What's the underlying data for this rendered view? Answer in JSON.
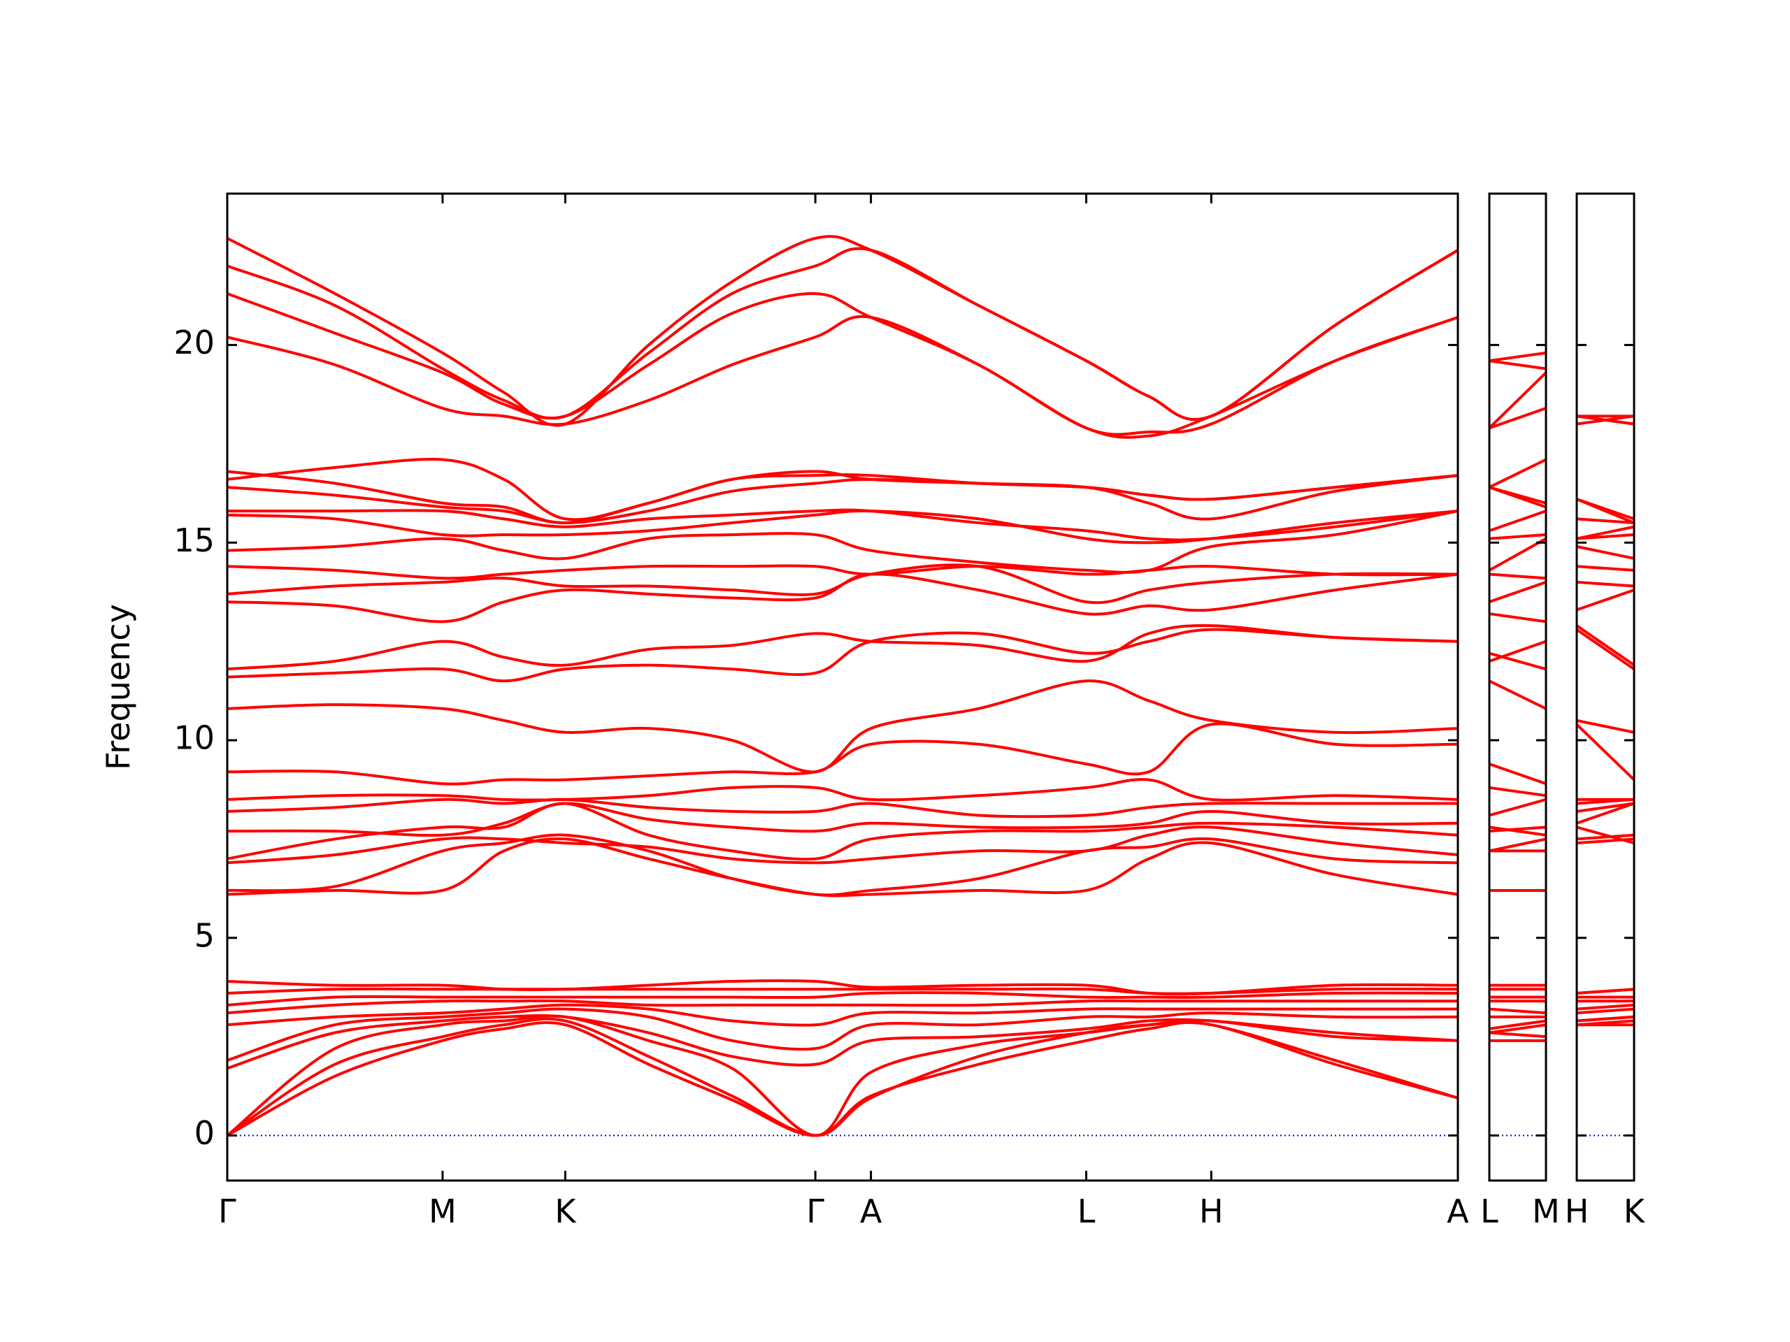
{
  "chart_data": [
    {
      "type": "line",
      "ylabel": "Frequency",
      "color": "#ff0000",
      "hline": 0,
      "hline_color": "#0000ff",
      "ytick_labels": true,
      "xlim": [
        0,
        10.63
      ],
      "ylim": [
        -1.14,
        23.83
      ],
      "yticks": [
        0,
        5,
        10,
        15,
        20
      ],
      "xticks": [
        {
          "value": 0,
          "label": "Γ"
        },
        {
          "value": 1.86,
          "label": "M"
        },
        {
          "value": 2.92,
          "label": "K"
        },
        {
          "value": 5.08,
          "label": "Γ"
        },
        {
          "value": 5.56,
          "label": "A"
        },
        {
          "value": 7.42,
          "label": "L"
        },
        {
          "value": 8.5,
          "label": "H"
        },
        {
          "value": 10.63,
          "label": "A"
        }
      ],
      "x": [
        0,
        0.93,
        1.86,
        2.39,
        2.92,
        3.64,
        4.36,
        5.08,
        5.56,
        6.49,
        7.42,
        7.96,
        8.5,
        9.57,
        10.63
      ],
      "series": [
        {
          "values": [
            0,
            1.5,
            2.4,
            2.7,
            2.8,
            1.8,
            0.9,
            0,
            1.0,
            1.8,
            2.4,
            2.7,
            2.8,
            1.8,
            0.95
          ]
        },
        {
          "values": [
            0,
            1.8,
            2.5,
            2.8,
            2.9,
            2.0,
            1.0,
            0,
            0.95,
            2.0,
            2.6,
            2.8,
            2.8,
            1.9,
            0.95
          ]
        },
        {
          "values": [
            0,
            2.2,
            2.8,
            2.9,
            3.0,
            2.4,
            1.7,
            0,
            1.6,
            2.3,
            2.6,
            2.8,
            2.9,
            2.5,
            2.4
          ]
        },
        {
          "values": [
            1.7,
            2.6,
            2.9,
            3.0,
            3.0,
            2.6,
            2.0,
            1.8,
            2.4,
            2.5,
            2.7,
            2.9,
            2.9,
            2.6,
            2.4
          ]
        },
        {
          "values": [
            1.9,
            2.8,
            3.0,
            3.1,
            3.2,
            3.0,
            2.4,
            2.2,
            2.8,
            2.8,
            3.0,
            3.0,
            3.1,
            3.0,
            3.0
          ]
        },
        {
          "values": [
            2.8,
            3.0,
            3.1,
            3.2,
            3.3,
            3.2,
            2.9,
            2.8,
            3.1,
            3.1,
            3.2,
            3.2,
            3.2,
            3.2,
            3.2
          ]
        },
        {
          "values": [
            3.1,
            3.3,
            3.4,
            3.4,
            3.4,
            3.3,
            3.3,
            3.3,
            3.3,
            3.3,
            3.4,
            3.4,
            3.4,
            3.4,
            3.4
          ]
        },
        {
          "values": [
            3.3,
            3.5,
            3.5,
            3.5,
            3.5,
            3.5,
            3.5,
            3.5,
            3.6,
            3.6,
            3.5,
            3.5,
            3.5,
            3.6,
            3.6
          ]
        },
        {
          "values": [
            3.6,
            3.7,
            3.7,
            3.7,
            3.7,
            3.7,
            3.7,
            3.7,
            3.7,
            3.7,
            3.7,
            3.6,
            3.6,
            3.7,
            3.7
          ]
        },
        {
          "values": [
            3.9,
            3.8,
            3.8,
            3.7,
            3.7,
            3.8,
            3.9,
            3.9,
            3.75,
            3.8,
            3.8,
            3.6,
            3.6,
            3.8,
            3.8
          ]
        },
        {
          "values": [
            6.1,
            6.2,
            6.2,
            7.2,
            7.5,
            7.0,
            6.5,
            6.1,
            6.1,
            6.2,
            6.2,
            7.0,
            7.4,
            6.6,
            6.1
          ]
        },
        {
          "values": [
            6.2,
            6.3,
            7.2,
            7.4,
            7.6,
            7.2,
            6.5,
            6.1,
            6.2,
            6.5,
            7.2,
            7.3,
            7.5,
            7.0,
            6.9
          ]
        },
        {
          "values": [
            6.9,
            7.1,
            7.5,
            7.5,
            7.4,
            7.3,
            7.0,
            6.9,
            7.0,
            7.2,
            7.2,
            7.6,
            7.8,
            7.4,
            7.1
          ]
        },
        {
          "values": [
            7.0,
            7.5,
            7.8,
            7.8,
            8.4,
            7.6,
            7.2,
            7.0,
            7.5,
            7.7,
            7.7,
            7.8,
            7.9,
            7.8,
            7.6
          ]
        },
        {
          "values": [
            7.7,
            7.7,
            7.6,
            7.9,
            8.4,
            8.0,
            7.8,
            7.7,
            7.9,
            7.8,
            7.8,
            7.9,
            8.2,
            7.9,
            7.9
          ]
        },
        {
          "values": [
            8.2,
            8.3,
            8.5,
            8.4,
            8.5,
            8.3,
            8.2,
            8.2,
            8.4,
            8.1,
            8.1,
            8.3,
            8.4,
            8.4,
            8.4
          ]
        },
        {
          "values": [
            8.5,
            8.6,
            8.6,
            8.5,
            8.5,
            8.6,
            8.8,
            8.8,
            8.5,
            8.6,
            8.8,
            9.0,
            8.5,
            8.6,
            8.5
          ]
        },
        {
          "values": [
            9.2,
            9.2,
            8.9,
            9.0,
            9.0,
            9.1,
            9.2,
            9.2,
            9.9,
            9.9,
            9.4,
            9.2,
            10.4,
            9.9,
            9.9
          ]
        },
        {
          "values": [
            10.8,
            10.9,
            10.8,
            10.5,
            10.2,
            10.3,
            10.0,
            9.2,
            10.3,
            10.8,
            11.5,
            11.0,
            10.5,
            10.2,
            10.3
          ]
        },
        {
          "values": [
            11.6,
            11.7,
            11.8,
            11.5,
            11.8,
            11.9,
            11.8,
            11.7,
            12.5,
            12.7,
            12.2,
            12.5,
            12.8,
            12.6,
            12.5
          ]
        },
        {
          "values": [
            11.8,
            12.0,
            12.5,
            12.1,
            11.9,
            12.3,
            12.4,
            12.7,
            12.5,
            12.4,
            12.0,
            12.7,
            12.9,
            12.6,
            12.5
          ]
        },
        {
          "values": [
            13.5,
            13.4,
            13.0,
            13.5,
            13.8,
            13.7,
            13.6,
            13.6,
            14.2,
            13.8,
            13.2,
            13.4,
            13.3,
            13.8,
            14.2
          ]
        },
        {
          "values": [
            13.7,
            13.9,
            14.0,
            14.1,
            13.9,
            13.9,
            13.8,
            13.7,
            14.2,
            14.4,
            13.5,
            13.8,
            14.0,
            14.2,
            14.2
          ]
        },
        {
          "values": [
            14.4,
            14.3,
            14.1,
            14.2,
            14.3,
            14.4,
            14.4,
            14.4,
            14.2,
            14.4,
            14.2,
            14.3,
            14.4,
            14.2,
            14.2
          ]
        },
        {
          "values": [
            14.8,
            14.9,
            15.1,
            14.8,
            14.6,
            15.1,
            15.2,
            15.2,
            14.8,
            14.5,
            14.3,
            14.3,
            14.9,
            15.2,
            15.8
          ]
        },
        {
          "values": [
            15.7,
            15.6,
            15.2,
            15.2,
            15.2,
            15.3,
            15.5,
            15.7,
            15.8,
            15.6,
            15.1,
            15.0,
            15.1,
            15.5,
            15.8
          ]
        },
        {
          "values": [
            15.8,
            15.8,
            15.8,
            15.6,
            15.4,
            15.6,
            15.7,
            15.8,
            15.8,
            15.5,
            15.3,
            15.1,
            15.1,
            15.4,
            15.8
          ]
        },
        {
          "values": [
            16.4,
            16.2,
            15.9,
            15.8,
            15.5,
            15.8,
            16.3,
            16.5,
            16.6,
            16.5,
            16.4,
            16.0,
            15.6,
            16.3,
            16.7
          ]
        },
        {
          "values": [
            16.8,
            16.5,
            16.0,
            15.9,
            15.5,
            16.0,
            16.6,
            16.8,
            16.6,
            16.5,
            16.4,
            16.2,
            16.1,
            16.4,
            16.7
          ]
        },
        {
          "values": [
            16.6,
            16.9,
            17.1,
            16.6,
            15.6,
            16.0,
            16.6,
            16.7,
            16.7,
            16.5,
            16.4,
            16.2,
            16.1,
            16.4,
            16.7
          ]
        },
        {
          "values": [
            20.2,
            19.5,
            18.4,
            18.2,
            18.0,
            18.6,
            19.5,
            20.2,
            20.7,
            19.5,
            17.9,
            17.7,
            18.2,
            19.6,
            20.7
          ]
        },
        {
          "values": [
            21.3,
            20.3,
            19.3,
            18.5,
            18.2,
            19.5,
            20.8,
            21.3,
            20.7,
            19.5,
            17.9,
            17.8,
            18.0,
            19.6,
            20.7
          ]
        },
        {
          "values": [
            22.0,
            21.0,
            19.4,
            18.6,
            18.2,
            19.8,
            21.3,
            22.0,
            22.4,
            21.0,
            19.6,
            18.7,
            18.2,
            20.5,
            22.4
          ]
        },
        {
          "values": [
            22.7,
            21.3,
            19.8,
            18.8,
            18.0,
            20.0,
            21.6,
            22.7,
            22.4,
            21.0,
            19.6,
            18.7,
            18.2,
            20.5,
            22.4
          ]
        }
      ]
    },
    {
      "type": "line",
      "color": "#ff0000",
      "hline": 0,
      "hline_color": "#0000ff",
      "ytick_labels": false,
      "xlim": [
        0,
        0.49
      ],
      "ylim": [
        -1.14,
        23.83
      ],
      "yticks": [
        0,
        5,
        10,
        15,
        20
      ],
      "xticks": [
        {
          "value": 0,
          "label": "L"
        },
        {
          "value": 0.49,
          "label": "M"
        }
      ],
      "x": [
        0,
        0.49
      ],
      "series": [
        {
          "values": [
            2.4,
            2.4
          ]
        },
        {
          "values": [
            2.6,
            2.5
          ]
        },
        {
          "values": [
            2.6,
            2.8
          ]
        },
        {
          "values": [
            2.7,
            2.9
          ]
        },
        {
          "values": [
            3.0,
            3.0
          ]
        },
        {
          "values": [
            3.2,
            3.1
          ]
        },
        {
          "values": [
            3.4,
            3.4
          ]
        },
        {
          "values": [
            3.5,
            3.5
          ]
        },
        {
          "values": [
            3.7,
            3.7
          ]
        },
        {
          "values": [
            3.8,
            3.8
          ]
        },
        {
          "values": [
            6.2,
            6.2
          ]
        },
        {
          "values": [
            7.2,
            7.2
          ]
        },
        {
          "values": [
            7.2,
            7.5
          ]
        },
        {
          "values": [
            7.7,
            7.8
          ]
        },
        {
          "values": [
            7.8,
            7.6
          ]
        },
        {
          "values": [
            8.1,
            8.5
          ]
        },
        {
          "values": [
            8.8,
            8.6
          ]
        },
        {
          "values": [
            9.4,
            8.9
          ]
        },
        {
          "values": [
            11.5,
            10.8
          ]
        },
        {
          "values": [
            12.2,
            11.8
          ]
        },
        {
          "values": [
            12.0,
            12.5
          ]
        },
        {
          "values": [
            13.2,
            13.0
          ]
        },
        {
          "values": [
            13.5,
            14.0
          ]
        },
        {
          "values": [
            14.2,
            14.1
          ]
        },
        {
          "values": [
            14.3,
            15.1
          ]
        },
        {
          "values": [
            15.1,
            15.2
          ]
        },
        {
          "values": [
            15.3,
            15.8
          ]
        },
        {
          "values": [
            16.4,
            15.9
          ]
        },
        {
          "values": [
            16.4,
            16.0
          ]
        },
        {
          "values": [
            16.4,
            17.1
          ]
        },
        {
          "values": [
            17.9,
            18.4
          ]
        },
        {
          "values": [
            17.9,
            19.3
          ]
        },
        {
          "values": [
            19.6,
            19.4
          ]
        },
        {
          "values": [
            19.6,
            19.8
          ]
        }
      ]
    },
    {
      "type": "line",
      "color": "#ff0000",
      "hline": 0,
      "hline_color": "#0000ff",
      "ytick_labels": false,
      "xlim": [
        0,
        0.49
      ],
      "ylim": [
        -1.14,
        23.83
      ],
      "yticks": [
        0,
        5,
        10,
        15,
        20
      ],
      "xticks": [
        {
          "value": 0,
          "label": "H"
        },
        {
          "value": 0.49,
          "label": "K"
        }
      ],
      "x": [
        0,
        0.49
      ],
      "series": [
        {
          "values": [
            2.8,
            2.8
          ]
        },
        {
          "values": [
            2.8,
            2.9
          ]
        },
        {
          "values": [
            2.9,
            3.0
          ]
        },
        {
          "values": [
            2.9,
            3.0
          ]
        },
        {
          "values": [
            3.1,
            3.2
          ]
        },
        {
          "values": [
            3.2,
            3.3
          ]
        },
        {
          "values": [
            3.4,
            3.4
          ]
        },
        {
          "values": [
            3.5,
            3.5
          ]
        },
        {
          "values": [
            3.6,
            3.7
          ]
        },
        {
          "values": [
            3.6,
            3.7
          ]
        },
        {
          "values": [
            7.4,
            7.5
          ]
        },
        {
          "values": [
            7.5,
            7.6
          ]
        },
        {
          "values": [
            7.8,
            7.4
          ]
        },
        {
          "values": [
            7.9,
            8.4
          ]
        },
        {
          "values": [
            8.2,
            8.4
          ]
        },
        {
          "values": [
            8.4,
            8.5
          ]
        },
        {
          "values": [
            8.5,
            8.5
          ]
        },
        {
          "values": [
            10.4,
            9.0
          ]
        },
        {
          "values": [
            10.5,
            10.2
          ]
        },
        {
          "values": [
            12.8,
            11.8
          ]
        },
        {
          "values": [
            12.9,
            11.9
          ]
        },
        {
          "values": [
            13.3,
            13.8
          ]
        },
        {
          "values": [
            14.0,
            13.9
          ]
        },
        {
          "values": [
            14.4,
            14.3
          ]
        },
        {
          "values": [
            14.9,
            14.6
          ]
        },
        {
          "values": [
            15.1,
            15.2
          ]
        },
        {
          "values": [
            15.1,
            15.4
          ]
        },
        {
          "values": [
            15.6,
            15.5
          ]
        },
        {
          "values": [
            16.1,
            15.5
          ]
        },
        {
          "values": [
            16.1,
            15.6
          ]
        },
        {
          "values": [
            18.2,
            18.0
          ]
        },
        {
          "values": [
            18.0,
            18.2
          ]
        },
        {
          "values": [
            18.2,
            18.2
          ]
        },
        {
          "values": [
            18.2,
            18.0
          ]
        }
      ]
    }
  ]
}
